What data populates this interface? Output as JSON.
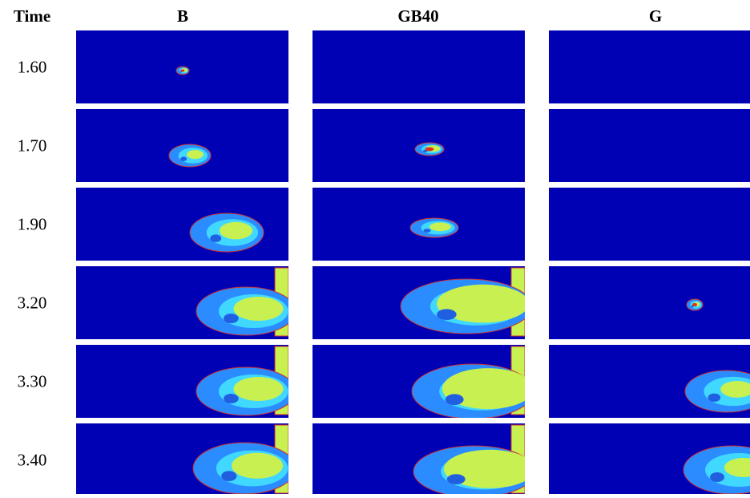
{
  "header": {
    "time": "Time",
    "columns": [
      "B",
      "GB40",
      "G"
    ]
  },
  "rows": [
    "1.60",
    "1.70",
    "1.90",
    "3.20",
    "3.30",
    "3.40"
  ]
}
